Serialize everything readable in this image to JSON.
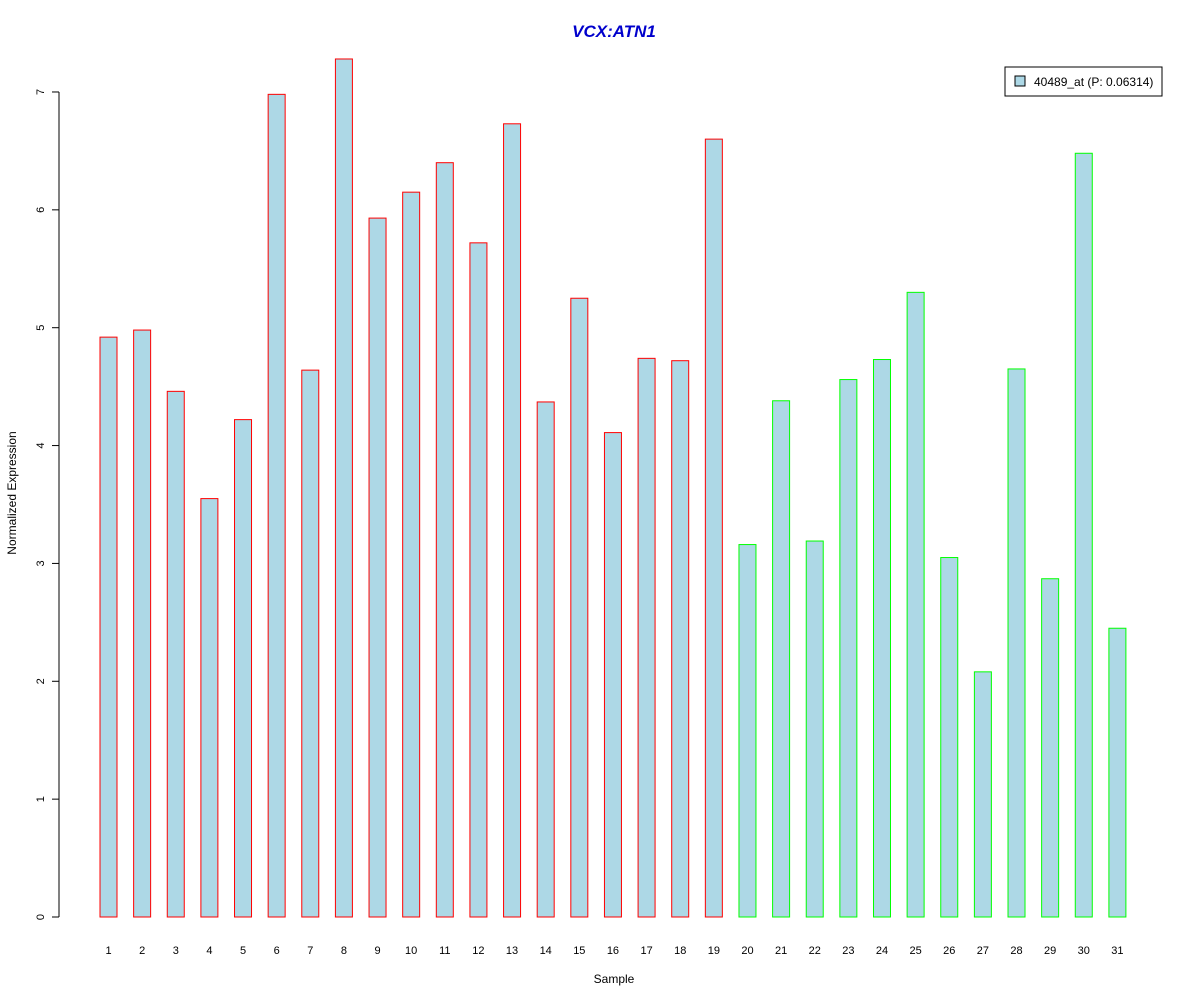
{
  "chart_data": {
    "type": "bar",
    "title": "VCX:ATN1",
    "xlabel": "Sample",
    "ylabel": "Normalized Expression",
    "ylim": [
      0,
      7
    ],
    "yticks": [
      0,
      1,
      2,
      3,
      4,
      5,
      6,
      7
    ],
    "grid": false,
    "legend_position": "top-right",
    "categories": [
      "1",
      "2",
      "3",
      "4",
      "5",
      "6",
      "7",
      "8",
      "9",
      "10",
      "11",
      "12",
      "13",
      "14",
      "15",
      "16",
      "17",
      "18",
      "19",
      "20",
      "21",
      "22",
      "23",
      "24",
      "25",
      "26",
      "27",
      "28",
      "29",
      "30",
      "31"
    ],
    "series": [
      {
        "name": "40489_at (P: 0.06314)",
        "values": [
          4.92,
          4.98,
          4.46,
          3.55,
          4.22,
          6.98,
          4.64,
          7.28,
          5.93,
          6.15,
          6.4,
          5.72,
          6.73,
          4.37,
          5.25,
          4.11,
          4.74,
          4.72,
          6.6,
          3.16,
          4.38,
          3.19,
          4.56,
          4.73,
          5.3,
          3.05,
          2.08,
          4.65,
          2.87,
          6.48,
          2.45
        ]
      }
    ],
    "group_a_count": 19,
    "group_b_count": 12
  },
  "colors": {
    "bar_fill": "#add8e6",
    "group_a_border": "#ff0000",
    "group_b_border": "#00ff00",
    "title": "#0000cc",
    "axis": "#000000"
  }
}
